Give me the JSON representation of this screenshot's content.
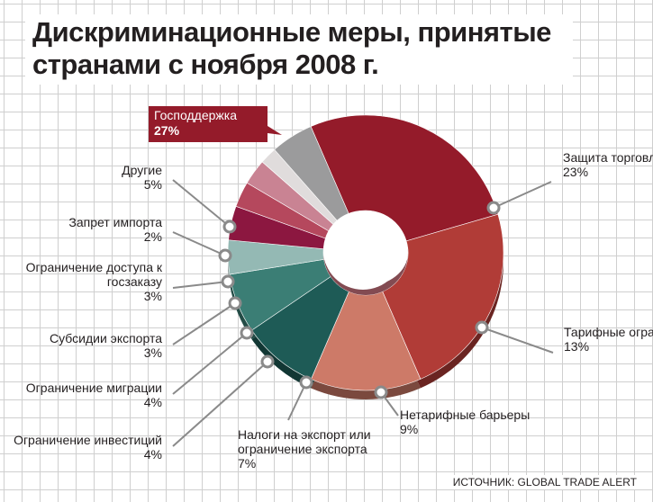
{
  "title": "Дискриминационные меры, принятые странами с ноября 2008 г.",
  "source": "ИСТОЧНИК: GLOBAL TRADE ALERT",
  "chart_data": {
    "type": "pie",
    "title": "Дискриминационные меры, принятые странами с ноября 2008 г.",
    "unit": "%",
    "slices": [
      {
        "label": "Господдержка",
        "value": 27,
        "value_text": "27%",
        "color": "#941b2a"
      },
      {
        "label": "Защита торговли",
        "value": 23,
        "value_text": "23%",
        "color": "#b13c37"
      },
      {
        "label": "Тарифные ограничения",
        "value": 13,
        "value_text": "13%",
        "color": "#cd7a68"
      },
      {
        "label": "Нетарифные барьеры",
        "value": 9,
        "value_text": "9%",
        "color": "#1e5b56"
      },
      {
        "label": "Налоги на экспорт или ограничение экспорта",
        "value": 7,
        "value_text": "7%",
        "color": "#3b7e75"
      },
      {
        "label": "Ограничение инвестиций",
        "value": 4,
        "value_text": "4%",
        "color": "#94b9b4"
      },
      {
        "label": "Ограничение миграции",
        "value": 4,
        "value_text": "4%",
        "color": "#8c1740"
      },
      {
        "label": "Субсидии экспорта",
        "value": 3,
        "value_text": "3%",
        "color": "#b5485d"
      },
      {
        "label": "Ограничение доступа к госзаказу",
        "value": 3,
        "value_text": "3%",
        "color": "#c98393"
      },
      {
        "label": "Запрет импорта",
        "value": 2,
        "value_text": "2%",
        "color": "#e0dcdc"
      },
      {
        "label": "Другие",
        "value": 5,
        "value_text": "5%",
        "color": "#9b9b9c"
      }
    ]
  }
}
